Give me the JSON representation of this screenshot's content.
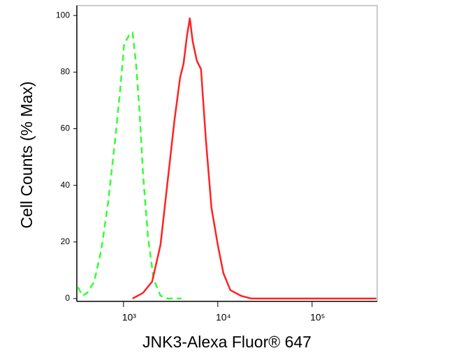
{
  "chart_data": {
    "type": "line",
    "x_label": "JNK3-Alexa Fluor® 647",
    "y_label": "Cell Counts (% Max)",
    "xscale": "log",
    "xlim": [
      320,
      490000
    ],
    "xticks": [
      {
        "value": 1000,
        "label": "10³"
      },
      {
        "value": 10000,
        "label": "10⁴"
      },
      {
        "value": 100000,
        "label": "10⁵"
      }
    ],
    "ylim": [
      -1,
      103.5
    ],
    "yticks": [
      0,
      20,
      40,
      60,
      80,
      100
    ],
    "series": [
      {
        "color": "#33ff33",
        "dash": true,
        "x": [
          330,
          366,
          412,
          489,
          580,
          687,
          815,
          918,
          1017,
          1146,
          1248,
          1360,
          1481,
          1612,
          1816,
          2082,
          2469,
          2929,
          4117
        ],
        "values": [
          4,
          1,
          2,
          6,
          17,
          34,
          56,
          73,
          90,
          93,
          94,
          83,
          66,
          44,
          22,
          7,
          1,
          0,
          0
        ]
      },
      {
        "color": "#ff2222",
        "dash": false,
        "x": [
          1248,
          1612,
          2012,
          2469,
          2929,
          3474,
          3981,
          4335,
          4721,
          5055,
          5410,
          5995,
          6640,
          7482,
          8577,
          10000,
          11460,
          13590,
          17550,
          22680,
          44870,
          480000
        ],
        "values": [
          0,
          2,
          6,
          19,
          41,
          63,
          78,
          83,
          93,
          99,
          91,
          84,
          81,
          56,
          32,
          19,
          9,
          3,
          1,
          0,
          0,
          0
        ]
      }
    ]
  }
}
